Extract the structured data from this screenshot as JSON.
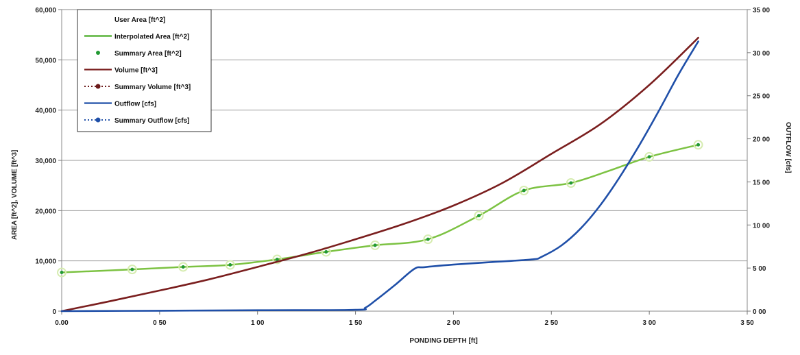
{
  "chart_data": {
    "type": "line",
    "title": "",
    "xlabel": "PONDING DEPTH [ft]",
    "ylabel_left": "AREA [ft^2], VOLUME [ft^3]",
    "ylabel_right": "OUTFLOW [cfs]",
    "xlim": [
      0,
      3.5
    ],
    "ylim_left": [
      0,
      60000
    ],
    "ylim_right": [
      0,
      35
    ],
    "x_ticks": [
      0,
      0.5,
      1.0,
      1.5,
      2.0,
      2.5,
      3.0,
      3.5
    ],
    "x_tick_labels": [
      "0.00",
      "0 50",
      "1 00",
      "1 50",
      "2 00",
      "2 50",
      "3 00",
      "3 50"
    ],
    "y_left_ticks": [
      0,
      10000,
      20000,
      30000,
      40000,
      50000,
      60000
    ],
    "y_left_tick_labels": [
      "0",
      "10,000",
      "20,000",
      "30,000",
      "40,000",
      "50,000",
      "60,000"
    ],
    "y_right_ticks": [
      0,
      5,
      10,
      15,
      20,
      25,
      30,
      35
    ],
    "y_right_tick_labels": [
      "0 00",
      "5 00",
      "10 00",
      "15 00",
      "20 00",
      "25 00",
      "30 00",
      "35 00"
    ],
    "grid": "horizontal",
    "legend_position": "top-left",
    "legend": [
      {
        "label": "User Area [ft^2]",
        "style": "none",
        "color": ""
      },
      {
        "label": "Interpolated Area [ft^2]",
        "style": "line",
        "color": "#44aa22"
      },
      {
        "label": "Summary Area [ft^2]",
        "style": "marker",
        "color": "#229933"
      },
      {
        "label": "Volume [ft^3]",
        "style": "line",
        "color": "#7a1e1e"
      },
      {
        "label": "Summary Volume [ft^3]",
        "style": "dotted-marker",
        "color": "#6b1a1a"
      },
      {
        "label": "Outflow [cfs]",
        "style": "line",
        "color": "#1f4fa8"
      },
      {
        "label": "Summary Outflow [cfs]",
        "style": "dotted-marker",
        "color": "#1f4fa8"
      }
    ],
    "series": [
      {
        "name": "Interpolated Area [ft^2]",
        "axis": "left",
        "color": "#7cc242",
        "x": [
          0,
          0.36,
          0.62,
          0.86,
          1.1,
          1.35,
          1.6,
          1.87,
          2.13,
          2.36,
          2.6,
          2.8,
          3.0,
          3.25
        ],
        "y": [
          7700,
          8300,
          8800,
          9200,
          10300,
          11800,
          13100,
          14300,
          19000,
          24000,
          25500,
          28000,
          30700,
          33100
        ]
      },
      {
        "name": "Summary Area [ft^2]",
        "axis": "left",
        "color": "#229933",
        "markers_only": true,
        "x": [
          0,
          0.36,
          0.62,
          0.86,
          1.1,
          1.35,
          1.6,
          1.87,
          2.13,
          2.36,
          2.6,
          3.0,
          3.25
        ],
        "y": [
          7700,
          8300,
          8800,
          9200,
          10300,
          11800,
          13100,
          14300,
          19000,
          24000,
          25500,
          30700,
          33100
        ]
      },
      {
        "name": "Volume [ft^3]",
        "axis": "left",
        "color": "#7a1e1e",
        "x": [
          0,
          0.25,
          0.5,
          0.75,
          1.0,
          1.25,
          1.5,
          1.75,
          2.0,
          2.25,
          2.5,
          2.75,
          3.0,
          3.25
        ],
        "y": [
          0,
          2000,
          4100,
          6300,
          8800,
          11400,
          14300,
          17400,
          21000,
          25500,
          31300,
          37200,
          45000,
          54400
        ]
      },
      {
        "name": "Outflow [cfs]",
        "axis": "right",
        "color": "#1f4fa8",
        "x": [
          0,
          0.5,
          1.0,
          1.5,
          1.55,
          1.6,
          1.7,
          1.8,
          1.85,
          2.0,
          2.2,
          2.4,
          2.45,
          2.55,
          2.65,
          2.75,
          2.85,
          2.95,
          3.05,
          3.15,
          3.25
        ],
        "y": [
          0,
          0.05,
          0.1,
          0.15,
          0.4,
          1.2,
          3.0,
          4.9,
          5.1,
          5.4,
          5.7,
          6.0,
          6.3,
          7.6,
          9.6,
          12.3,
          15.6,
          19.3,
          23.3,
          27.5,
          31.3
        ]
      }
    ]
  }
}
